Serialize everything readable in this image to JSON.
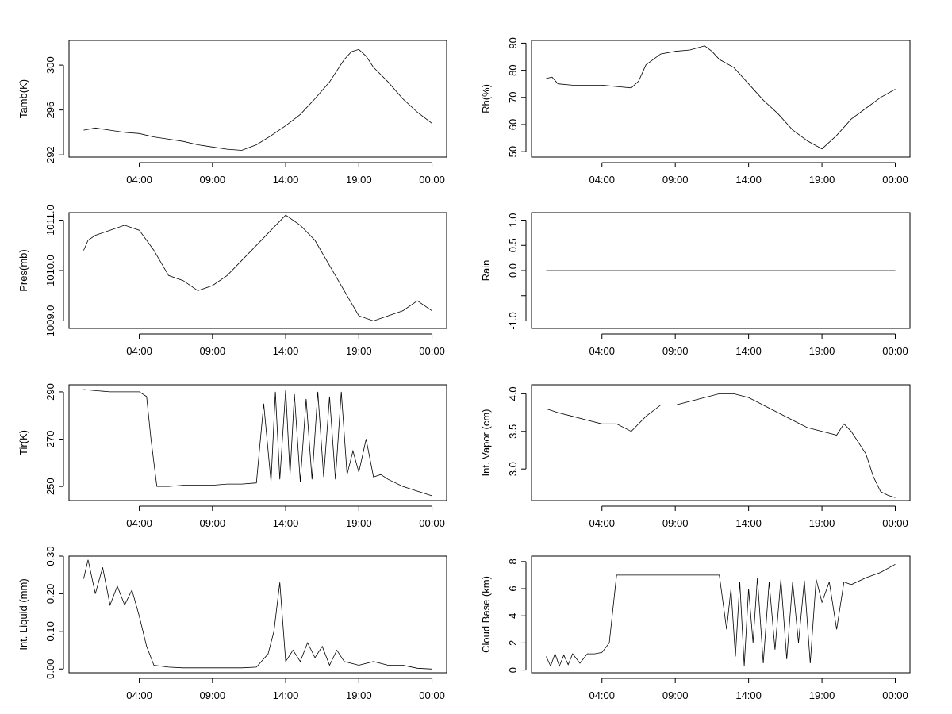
{
  "chart_data": [
    {
      "type": "line",
      "ylabel": "Tamb(K)",
      "x_ticks": [
        4,
        9,
        14,
        19,
        24
      ],
      "x_tick_labels": [
        "04:00",
        "09:00",
        "14:00",
        "19:00",
        "00:00"
      ],
      "xlim": [
        -0.8,
        25.0
      ],
      "ylim": [
        291.8,
        302.2
      ],
      "y_ticks": [
        292,
        296,
        300
      ],
      "y_tick_labels": [
        "292",
        "296",
        "300"
      ],
      "x": [
        0.2,
        1,
        2,
        3,
        4,
        5,
        6,
        7,
        8,
        9,
        10,
        11,
        12,
        13,
        14,
        15,
        16,
        17,
        18,
        18.5,
        19,
        19.5,
        20,
        21,
        22,
        23,
        24
      ],
      "values": [
        294.2,
        294.4,
        294.2,
        294.0,
        293.9,
        293.6,
        293.4,
        293.2,
        292.9,
        292.7,
        292.5,
        292.4,
        292.9,
        293.7,
        294.6,
        295.6,
        297.0,
        298.5,
        300.5,
        301.2,
        301.4,
        300.8,
        299.8,
        298.5,
        297.0,
        295.8,
        294.8
      ]
    },
    {
      "type": "line",
      "ylabel": "Rh(%)",
      "x_ticks": [
        4,
        9,
        14,
        19,
        24
      ],
      "x_tick_labels": [
        "04:00",
        "09:00",
        "14:00",
        "19:00",
        "00:00"
      ],
      "xlim": [
        -0.8,
        25.0
      ],
      "ylim": [
        48,
        91
      ],
      "y_ticks": [
        50,
        60,
        70,
        80,
        90
      ],
      "y_tick_labels": [
        "50",
        "60",
        "70",
        "80",
        "90"
      ],
      "x": [
        0.2,
        0.6,
        1,
        2,
        3,
        4,
        5,
        6,
        6.5,
        7,
        8,
        9,
        10,
        11,
        11.5,
        12,
        13,
        14,
        15,
        16,
        17,
        18,
        19,
        20,
        21,
        22,
        23,
        24
      ],
      "values": [
        77,
        77.5,
        75,
        74.5,
        74.5,
        74.5,
        74,
        73.5,
        76,
        82,
        86,
        87,
        87.5,
        89,
        87,
        84,
        81,
        75,
        69,
        64,
        58,
        54,
        51,
        56,
        62,
        66,
        70,
        73
      ]
    },
    {
      "type": "line",
      "ylabel": "Pres(mb)",
      "x_ticks": [
        4,
        9,
        14,
        19,
        24
      ],
      "x_tick_labels": [
        "04:00",
        "09:00",
        "14:00",
        "19:00",
        "00:00"
      ],
      "xlim": [
        -0.8,
        25.0
      ],
      "ylim": [
        1008.85,
        1011.15
      ],
      "y_ticks": [
        1009.0,
        1010.0,
        1011.0
      ],
      "y_tick_labels": [
        "1009.0",
        "1010.0",
        "1011.0"
      ],
      "x": [
        0.2,
        0.5,
        1,
        2,
        3,
        4,
        5,
        6,
        7,
        8,
        9,
        10,
        11,
        12,
        13,
        14,
        15,
        16,
        17,
        18,
        19,
        20,
        21,
        22,
        23,
        24
      ],
      "values": [
        1010.4,
        1010.6,
        1010.7,
        1010.8,
        1010.9,
        1010.8,
        1010.4,
        1009.9,
        1009.8,
        1009.6,
        1009.7,
        1009.9,
        1010.2,
        1010.5,
        1010.8,
        1011.1,
        1010.9,
        1010.6,
        1010.1,
        1009.6,
        1009.1,
        1009.0,
        1009.1,
        1009.2,
        1009.4,
        1009.2
      ]
    },
    {
      "type": "line",
      "ylabel": "Rain",
      "x_ticks": [
        4,
        9,
        14,
        19,
        24
      ],
      "x_tick_labels": [
        "04:00",
        "09:00",
        "14:00",
        "19:00",
        "00:00"
      ],
      "xlim": [
        -0.8,
        25.0
      ],
      "ylim": [
        -1.15,
        1.15
      ],
      "y_ticks": [
        -1.0,
        -0.5,
        0.0,
        0.5,
        1.0
      ],
      "y_tick_labels": [
        "-1.0",
        "",
        "0.0",
        "0.5",
        "1.0"
      ],
      "x": [
        0.2,
        24
      ],
      "values": [
        0.0,
        0.0
      ]
    },
    {
      "type": "line",
      "ylabel": "Tir(K)",
      "x_ticks": [
        4,
        9,
        14,
        19,
        24
      ],
      "x_tick_labels": [
        "04:00",
        "09:00",
        "14:00",
        "19:00",
        "00:00"
      ],
      "xlim": [
        -0.8,
        25.0
      ],
      "ylim": [
        244,
        293
      ],
      "y_ticks": [
        250,
        270,
        290
      ],
      "y_tick_labels": [
        "250",
        "270",
        "290"
      ],
      "x": [
        0.2,
        1,
        2,
        3,
        4,
        4.5,
        4.8,
        5.2,
        6,
        7,
        8,
        9,
        10,
        11,
        12,
        12.5,
        13,
        13.3,
        13.6,
        14,
        14.3,
        14.6,
        15,
        15.4,
        15.8,
        16.2,
        16.6,
        17,
        17.4,
        17.8,
        18.2,
        18.6,
        19,
        19.5,
        20,
        20.5,
        21,
        22,
        23,
        24
      ],
      "values": [
        291,
        290.5,
        290,
        290,
        290,
        288,
        270,
        250,
        250,
        250.5,
        250.5,
        250.5,
        251,
        251,
        251.5,
        285,
        252,
        290,
        253,
        291,
        255,
        289,
        252,
        287,
        253,
        290,
        254,
        288,
        253,
        290,
        255,
        265,
        256,
        270,
        254,
        255,
        253,
        250,
        248,
        246
      ]
    },
    {
      "type": "line",
      "ylabel": "Int. Vapor (cm)",
      "x_ticks": [
        4,
        9,
        14,
        19,
        24
      ],
      "x_tick_labels": [
        "04:00",
        "09:00",
        "14:00",
        "19:00",
        "00:00"
      ],
      "xlim": [
        -0.8,
        25.0
      ],
      "ylim": [
        2.58,
        4.12
      ],
      "y_ticks": [
        3.0,
        3.5,
        4.0
      ],
      "y_tick_labels": [
        "3.0",
        "3.5",
        "4.0"
      ],
      "x": [
        0.2,
        1,
        2,
        3,
        4,
        5,
        6,
        7,
        8,
        9,
        10,
        11,
        12,
        13,
        14,
        15,
        16,
        17,
        18,
        19,
        20,
        20.5,
        21,
        22,
        22.5,
        23,
        23.5,
        24
      ],
      "values": [
        3.8,
        3.75,
        3.7,
        3.65,
        3.6,
        3.6,
        3.5,
        3.7,
        3.85,
        3.85,
        3.9,
        3.95,
        4.0,
        4.0,
        3.95,
        3.85,
        3.75,
        3.65,
        3.55,
        3.5,
        3.45,
        3.6,
        3.5,
        3.2,
        2.9,
        2.7,
        2.65,
        2.62
      ]
    },
    {
      "type": "line",
      "ylabel": "Int. Liquid (mm)",
      "x_ticks": [
        4,
        9,
        14,
        19,
        24
      ],
      "x_tick_labels": [
        "04:00",
        "09:00",
        "14:00",
        "19:00",
        "00:00"
      ],
      "xlim": [
        -0.8,
        25.0
      ],
      "ylim": [
        -0.01,
        0.3
      ],
      "y_ticks": [
        0.0,
        0.1,
        0.2,
        0.3
      ],
      "y_tick_labels": [
        "0.00",
        "0.10",
        "0.20",
        "0.30"
      ],
      "x": [
        0.2,
        0.5,
        1,
        1.5,
        2,
        2.5,
        3,
        3.5,
        4,
        4.5,
        5,
        6,
        7,
        8,
        9,
        10,
        11,
        12,
        12.8,
        13.2,
        13.6,
        14,
        14.5,
        15,
        15.5,
        16,
        16.5,
        17,
        17.5,
        18,
        19,
        20,
        21,
        22,
        23,
        24
      ],
      "values": [
        0.24,
        0.29,
        0.2,
        0.27,
        0.17,
        0.22,
        0.17,
        0.21,
        0.14,
        0.06,
        0.01,
        0.005,
        0.003,
        0.003,
        0.003,
        0.003,
        0.003,
        0.005,
        0.04,
        0.1,
        0.23,
        0.02,
        0.05,
        0.02,
        0.07,
        0.03,
        0.06,
        0.01,
        0.05,
        0.02,
        0.01,
        0.02,
        0.01,
        0.01,
        0.002,
        0.0
      ]
    },
    {
      "type": "line",
      "ylabel": "Cloud Base (km)",
      "x_ticks": [
        4,
        9,
        14,
        19,
        24
      ],
      "x_tick_labels": [
        "04:00",
        "09:00",
        "14:00",
        "19:00",
        "00:00"
      ],
      "xlim": [
        -0.8,
        25.0
      ],
      "ylim": [
        -0.2,
        8.4
      ],
      "y_ticks": [
        0,
        2,
        4,
        6,
        8
      ],
      "y_tick_labels": [
        "0",
        "2",
        "4",
        "6",
        "8"
      ],
      "x": [
        0.2,
        0.5,
        0.8,
        1.1,
        1.4,
        1.7,
        2,
        2.5,
        3,
        3.5,
        4,
        4.5,
        5,
        6,
        7,
        8,
        9,
        10,
        11,
        12,
        12.5,
        12.8,
        13.1,
        13.4,
        13.7,
        14,
        14.3,
        14.6,
        15,
        15.4,
        15.8,
        16.2,
        16.6,
        17,
        17.4,
        17.8,
        18.2,
        18.6,
        19,
        19.5,
        20,
        20.5,
        21,
        22,
        23,
        24
      ],
      "values": [
        1.0,
        0.3,
        1.2,
        0.3,
        1.1,
        0.4,
        1.2,
        0.5,
        1.2,
        1.2,
        1.3,
        2.0,
        7.0,
        7.0,
        7.0,
        7.0,
        7.0,
        7.0,
        7.0,
        7.0,
        3.0,
        6.0,
        1.0,
        6.5,
        0.3,
        6.0,
        2.0,
        6.8,
        0.5,
        6.5,
        1.5,
        6.7,
        0.8,
        6.5,
        2.0,
        6.6,
        0.5,
        6.7,
        5.0,
        6.5,
        3.0,
        6.5,
        6.3,
        6.8,
        7.2,
        7.8
      ]
    }
  ]
}
